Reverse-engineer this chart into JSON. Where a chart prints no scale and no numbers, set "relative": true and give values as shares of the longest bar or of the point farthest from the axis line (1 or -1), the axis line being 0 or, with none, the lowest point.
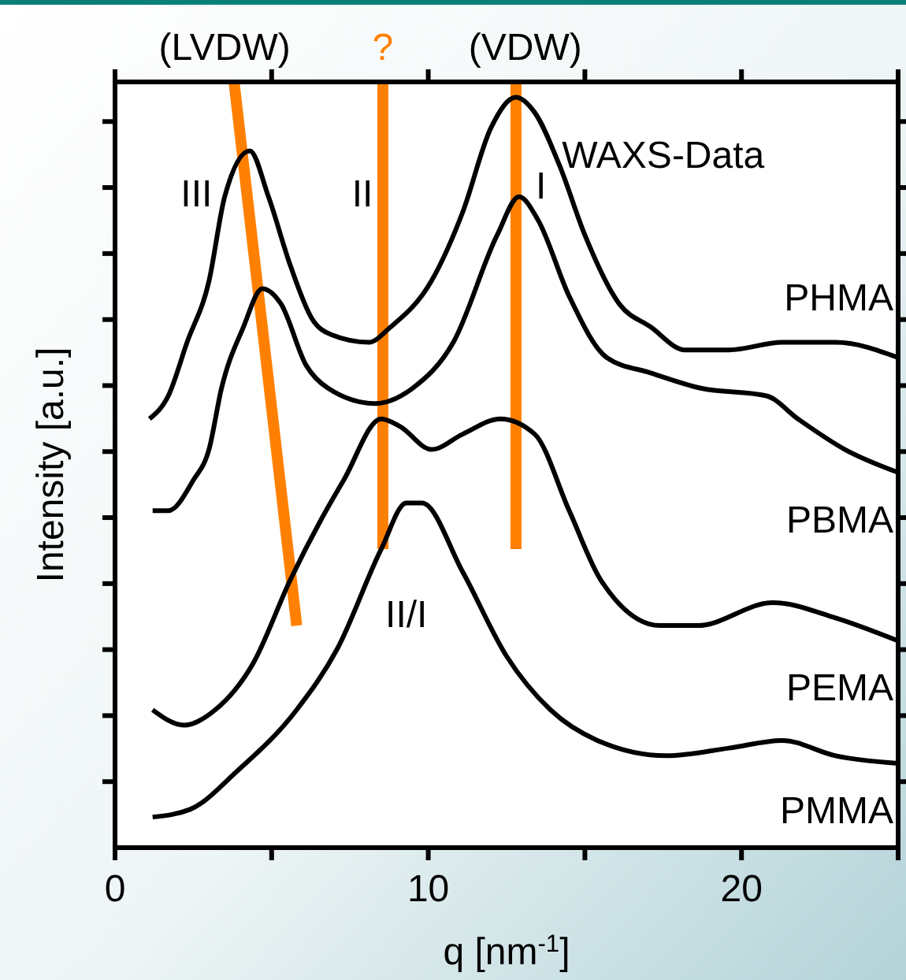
{
  "chart_data": {
    "type": "line",
    "relative": true,
    "xlabel": "q [nm$^{-1}$]",
    "ylabel": "Intensity  [a.u.]",
    "xlim": [
      0,
      25
    ],
    "xticks": [
      0,
      {
        "value": 5,
        "label": null
      },
      10,
      {
        "value": 15,
        "label": null
      },
      20,
      {
        "value": 25,
        "label": null
      }
    ],
    "legend": "right",
    "grid": false,
    "series": [
      {
        "name": "PHMA",
        "color": "#000000",
        "x": [
          1.1,
          1.7,
          2.3,
          3.0,
          3.5,
          4.3,
          4.9,
          5.6,
          6.3,
          6.9,
          8.1,
          8.8,
          10.1,
          11.1,
          12.0,
          12.8,
          13.4,
          14.2,
          15.0,
          16.1,
          17.1,
          18.2,
          19.6,
          21.3,
          23.0,
          25
        ],
        "values": [
          0.56,
          0.59,
          0.66,
          0.74,
          0.85,
          0.91,
          0.85,
          0.76,
          0.69,
          0.67,
          0.66,
          0.68,
          0.74,
          0.83,
          0.94,
          0.98,
          0.96,
          0.89,
          0.8,
          0.71,
          0.68,
          0.65,
          0.65,
          0.66,
          0.66,
          0.64
        ]
      },
      {
        "name": "PBMA",
        "color": "#000000",
        "x": [
          1.2,
          1.7,
          2.5,
          3.0,
          3.4,
          4.1,
          4.7,
          5.3,
          6.1,
          6.8,
          8.3,
          9.5,
          10.8,
          12.2,
          12.9,
          13.5,
          14.5,
          15.7,
          17.1,
          18.7,
          20.8,
          21.8,
          23.3,
          25
        ],
        "values": [
          0.44,
          0.44,
          0.48,
          0.52,
          0.6,
          0.68,
          0.73,
          0.71,
          0.63,
          0.6,
          0.58,
          0.6,
          0.66,
          0.8,
          0.85,
          0.82,
          0.72,
          0.64,
          0.62,
          0.6,
          0.59,
          0.56,
          0.52,
          0.49
        ]
      },
      {
        "name": "PEMA",
        "color": "#000000",
        "x": [
          1.2,
          2.2,
          3.2,
          4.4,
          5.6,
          6.6,
          7.3,
          8.5,
          9.1,
          10.1,
          11.1,
          12.3,
          13.4,
          14.5,
          15.5,
          17.4,
          18.6,
          21.0,
          23.0,
          25
        ],
        "values": [
          0.18,
          0.16,
          0.18,
          0.24,
          0.35,
          0.43,
          0.48,
          0.56,
          0.55,
          0.52,
          0.54,
          0.56,
          0.54,
          0.44,
          0.35,
          0.29,
          0.29,
          0.32,
          0.3,
          0.27
        ]
      },
      {
        "name": "PMMA",
        "color": "#000000",
        "x": [
          1.2,
          2.4,
          3.9,
          5.8,
          7.1,
          8.5,
          9.3,
          9.8,
          11.1,
          12.5,
          13.9,
          15.4,
          17.6,
          19.6,
          21.3,
          23.0,
          25
        ],
        "values": [
          0.04,
          0.05,
          0.1,
          0.18,
          0.26,
          0.39,
          0.45,
          0.45,
          0.36,
          0.25,
          0.18,
          0.14,
          0.12,
          0.13,
          0.14,
          0.12,
          0.11
        ]
      },
      {
        "color": "#ff8000",
        "x": [
          3.8,
          5.8
        ],
        "values": [
          1,
          0.29
        ]
      },
      {
        "color": "#ff8000",
        "x": [
          8.55,
          8.55
        ],
        "values": [
          1,
          0.39
        ]
      },
      {
        "color": "#ff8000",
        "x": [
          12.8,
          12.8
        ],
        "values": [
          1,
          0.39
        ]
      }
    ],
    "annotations": [
      "(LVDW)",
      "?",
      "(VDW)",
      "WAXS-Data",
      "III",
      "II",
      "I",
      "II/I"
    ]
  }
}
